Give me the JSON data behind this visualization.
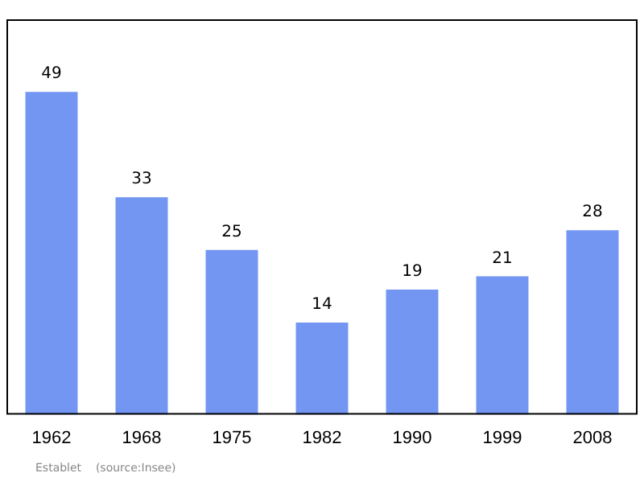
{
  "chart_data": {
    "type": "bar",
    "categories": [
      "1962",
      "1968",
      "1975",
      "1982",
      "1990",
      "1999",
      "2008"
    ],
    "values": [
      49,
      33,
      25,
      14,
      19,
      21,
      28
    ],
    "color": "#7396f2",
    "data_labels": true,
    "tick_labels": "x",
    "grid": false,
    "legend": false,
    "annotations": [
      "Establet    (source:Insee)"
    ]
  }
}
